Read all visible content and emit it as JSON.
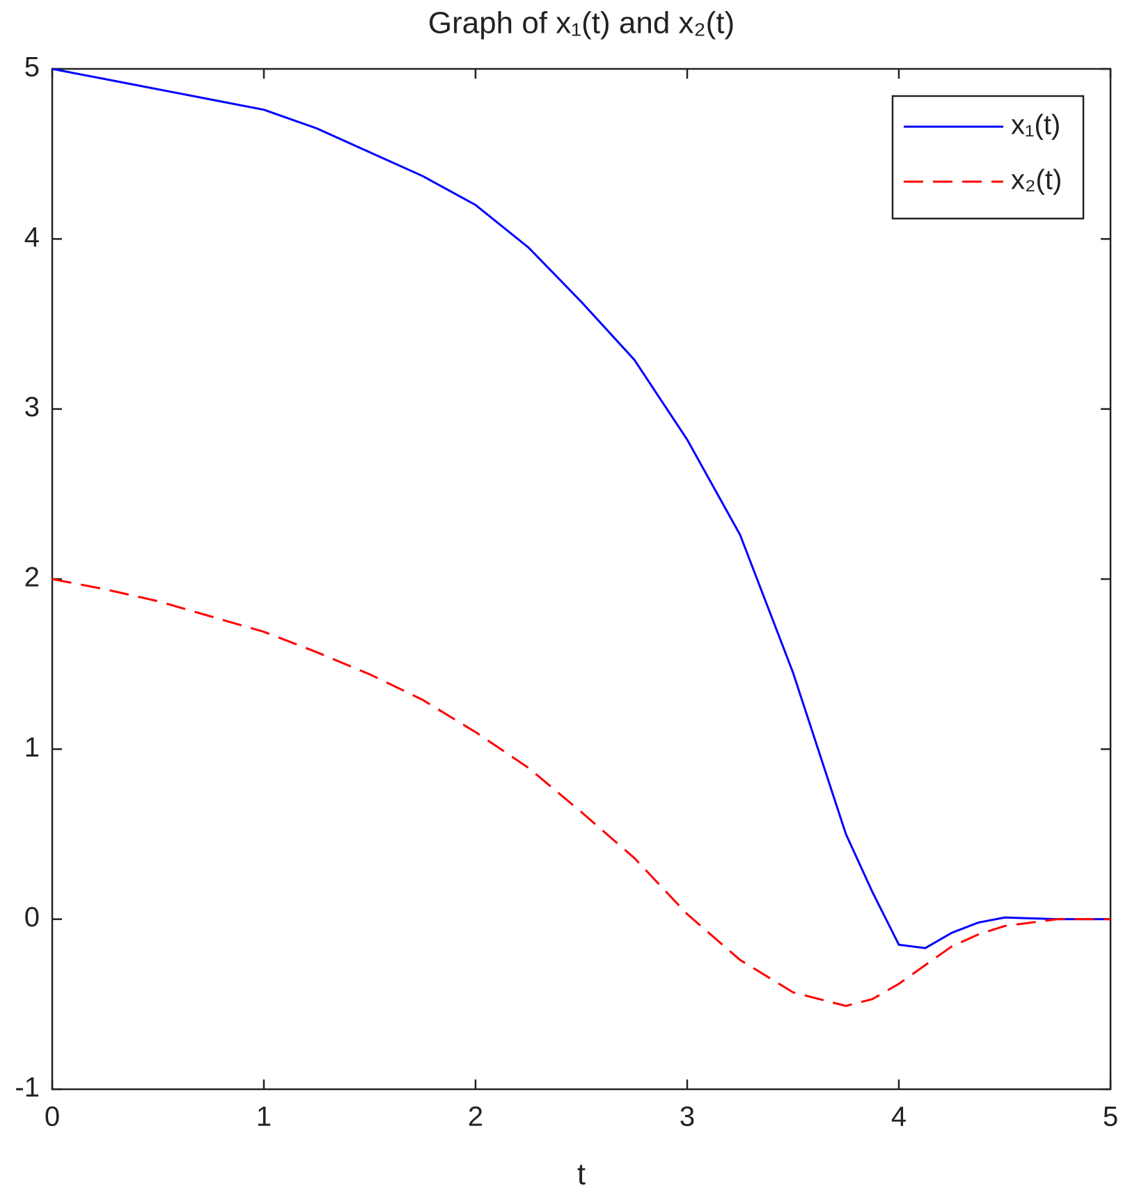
{
  "chart_data": {
    "type": "line",
    "title": "Graph of x₁(t) and x₂(t)",
    "x_label": "t",
    "x": [
      0,
      0.25,
      0.5,
      0.75,
      1,
      1.25,
      1.5,
      1.75,
      2,
      2.25,
      2.5,
      2.75,
      3,
      3.25,
      3.5,
      3.75,
      3.875,
      4,
      4.125,
      4.25,
      4.375,
      4.5,
      4.75,
      5
    ],
    "series": [
      {
        "name": "x₁(t)",
        "color": "#0000ff",
        "dash": false,
        "values": [
          5,
          4.94,
          4.88,
          4.82,
          4.76,
          4.65,
          4.51,
          4.37,
          4.2,
          3.95,
          3.63,
          3.29,
          2.82,
          2.26,
          1.45,
          0.5,
          0.16,
          -0.15,
          -0.17,
          -0.08,
          -0.02,
          0.01,
          0,
          0
        ]
      },
      {
        "name": "x₂(t)",
        "color": "#ff0000",
        "dash": true,
        "values": [
          2,
          1.94,
          1.87,
          1.78,
          1.69,
          1.57,
          1.44,
          1.29,
          1.1,
          0.89,
          0.63,
          0.36,
          0.03,
          -0.24,
          -0.43,
          -0.51,
          -0.47,
          -0.38,
          -0.27,
          -0.16,
          -0.09,
          -0.04,
          0,
          0
        ]
      }
    ],
    "xlim": [
      0,
      5
    ],
    "xticks": [
      0,
      1,
      2,
      3,
      4,
      5
    ],
    "ylim": [
      -1,
      5
    ],
    "yticks": [
      -1,
      0,
      1,
      2,
      3,
      4,
      5
    ],
    "legend": "top-right"
  }
}
